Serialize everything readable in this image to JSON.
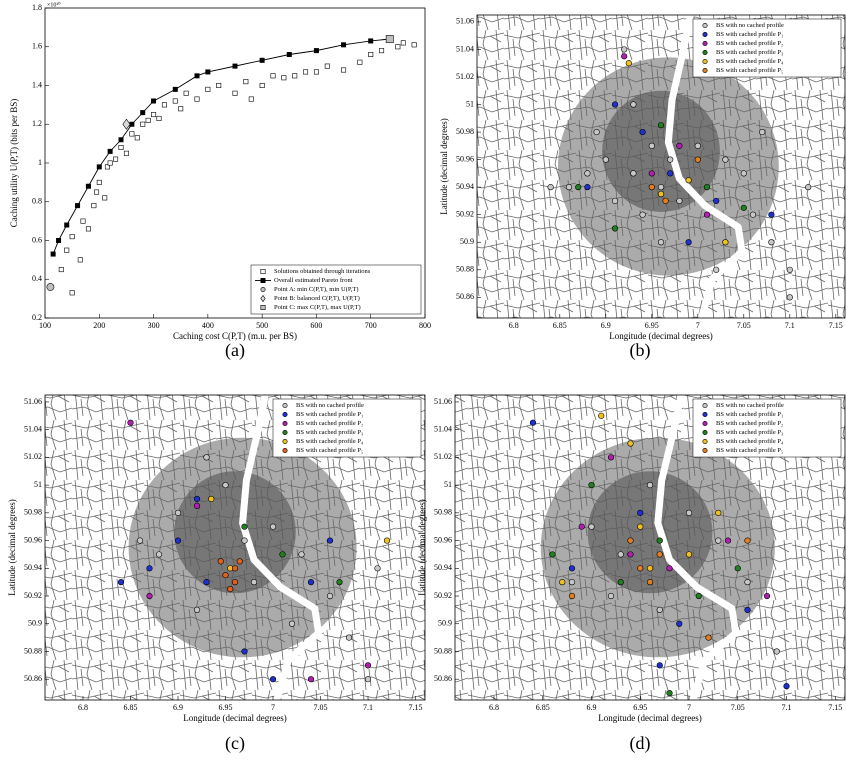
{
  "chart_data": [
    {
      "type": "scatter",
      "caption": "(a)",
      "xlabel": "Caching cost C(P,T) (m.u. per BS)",
      "ylabel": "Caching utility U(P,T) (bits per BS)",
      "y_exponent": "×10¹⁰",
      "xlim": [
        100,
        800
      ],
      "xticks": [
        100,
        200,
        300,
        400,
        500,
        600,
        700,
        800
      ],
      "ylim": [
        0.2,
        1.8
      ],
      "yticks": [
        0.2,
        0.4,
        0.6,
        0.8,
        1,
        1.2,
        1.4,
        1.6,
        1.8
      ],
      "legend": "lower right",
      "series": [
        {
          "name": "Solutions obtained through iterations",
          "color": "#ffffff",
          "marker": "square",
          "x": [
            130,
            140,
            150,
            150,
            165,
            170,
            180,
            190,
            195,
            200,
            210,
            215,
            220,
            230,
            240,
            250,
            260,
            270,
            280,
            290,
            300,
            310,
            320,
            340,
            350,
            360,
            380,
            400,
            420,
            450,
            470,
            480,
            500,
            520,
            540,
            560,
            580,
            600,
            620,
            650,
            680,
            700,
            720,
            750,
            760,
            780
          ],
          "values": [
            0.45,
            0.55,
            0.33,
            0.62,
            0.5,
            0.7,
            0.66,
            0.78,
            0.85,
            0.9,
            0.82,
            0.98,
            1.0,
            1.02,
            1.08,
            1.05,
            1.15,
            1.13,
            1.2,
            1.22,
            1.25,
            1.23,
            1.3,
            1.32,
            1.28,
            1.36,
            1.33,
            1.38,
            1.4,
            1.36,
            1.42,
            1.33,
            1.4,
            1.45,
            1.44,
            1.45,
            1.47,
            1.47,
            1.5,
            1.48,
            1.52,
            1.56,
            1.58,
            1.6,
            1.62,
            1.61
          ]
        },
        {
          "name": "Overall estimated Pareto front",
          "color": "#000000",
          "marker": "square",
          "line": true,
          "x": [
            115,
            125,
            140,
            160,
            180,
            200,
            220,
            240,
            260,
            280,
            300,
            340,
            380,
            400,
            450,
            500,
            550,
            600,
            650,
            700,
            735
          ],
          "values": [
            0.53,
            0.6,
            0.68,
            0.78,
            0.88,
            0.98,
            1.06,
            1.12,
            1.2,
            1.26,
            1.32,
            1.38,
            1.45,
            1.47,
            1.5,
            1.53,
            1.56,
            1.58,
            1.61,
            1.63,
            1.64
          ]
        },
        {
          "name": "Point A: min C(P,T), min U(P,T)",
          "color": "#bfbfbf",
          "marker": "circle",
          "x": [
            110
          ],
          "values": [
            0.36
          ]
        },
        {
          "name": "Point B: balanced C(P,T), U(P,T)",
          "color": "#d9d9d9",
          "marker": "diamond",
          "x": [
            250
          ],
          "values": [
            1.2
          ]
        },
        {
          "name": "Point C: max C(P,T), max U(P,T)",
          "color": "#bfbfbf",
          "marker": "square",
          "x": [
            735
          ],
          "values": [
            1.64
          ]
        }
      ]
    },
    {
      "type": "map",
      "caption": "(b)",
      "xlabel": "Longitude (decimal degrees)",
      "ylabel": "Latitude (decimal degrees)",
      "xlim": [
        6.76,
        7.16
      ],
      "xticks": [
        6.8,
        6.85,
        6.9,
        6.95,
        7,
        7.05,
        7.1,
        7.15
      ],
      "ylim": [
        50.845,
        51.065
      ],
      "yticks": [
        50.86,
        50.88,
        50.9,
        50.92,
        50.94,
        50.96,
        50.98,
        51,
        51.02,
        51.04,
        51.06
      ],
      "legend": "upper right",
      "series": [
        {
          "name": "BS with no cached profile",
          "color": "#c8c8c8",
          "x": [
            6.92,
            6.93,
            6.89,
            6.9,
            6.88,
            6.86,
            6.91,
            6.94,
            6.95,
            6.97,
            7.0,
            7.03,
            7.05,
            7.06,
            7.08,
            7.1,
            7.1,
            7.02,
            6.96,
            6.98,
            6.93,
            6.96,
            7.07,
            6.84,
            7.12
          ],
          "values": [
            51.04,
            51.0,
            50.98,
            50.96,
            50.95,
            50.94,
            50.93,
            50.92,
            50.97,
            50.96,
            50.97,
            50.96,
            50.95,
            50.92,
            50.9,
            50.88,
            50.86,
            50.88,
            50.9,
            50.93,
            50.95,
            50.94,
            50.98,
            50.94,
            50.94
          ]
        },
        {
          "name": "BS with cached profile P₁",
          "color": "#2030d0",
          "x": [
            6.91,
            6.94,
            6.97,
            6.88,
            7.02,
            7.08,
            6.99
          ],
          "values": [
            51.0,
            50.98,
            50.95,
            50.94,
            50.93,
            50.92,
            50.9
          ]
        },
        {
          "name": "BS with cached profile P₂",
          "color": "#b020b0",
          "x": [
            6.92,
            6.95,
            6.98,
            7.01
          ],
          "values": [
            51.035,
            50.95,
            50.97,
            50.92
          ]
        },
        {
          "name": "BS with cached profile P₃",
          "color": "#208020",
          "x": [
            6.96,
            6.87,
            6.91,
            7.01,
            7.05
          ],
          "values": [
            50.985,
            50.94,
            50.91,
            50.94,
            50.925
          ]
        },
        {
          "name": "BS with cached profile P₄",
          "color": "#f0c020",
          "x": [
            6.925,
            6.96,
            6.99,
            7.03
          ],
          "values": [
            51.03,
            50.935,
            50.945,
            50.9
          ]
        },
        {
          "name": "BS with cached profile P₅",
          "color": "#e08020",
          "x": [
            6.95,
            6.965,
            7.0
          ],
          "values": [
            50.94,
            50.93,
            50.96
          ]
        }
      ]
    },
    {
      "type": "map",
      "caption": "(c)",
      "xlabel": "Longitude (decimal degrees)",
      "ylabel": "Latitude (decimal degrees)",
      "xlim": [
        6.76,
        7.16
      ],
      "xticks": [
        6.8,
        6.85,
        6.9,
        6.95,
        7,
        7.05,
        7.1,
        7.15
      ],
      "ylim": [
        50.845,
        51.065
      ],
      "yticks": [
        50.86,
        50.88,
        50.9,
        50.92,
        50.94,
        50.96,
        50.98,
        51,
        51.02,
        51.04,
        51.06
      ],
      "legend": "upper right",
      "series": [
        {
          "name": "BS with no cached profile",
          "color": "#c8c8c8",
          "x": [
            6.9,
            6.93,
            6.97,
            7.0,
            7.03,
            7.06,
            7.08,
            6.88,
            6.95,
            7.1,
            6.92,
            6.86,
            7.02,
            7.11,
            6.98
          ],
          "values": [
            50.98,
            51.02,
            50.96,
            50.97,
            50.95,
            50.92,
            50.89,
            50.95,
            51.0,
            50.86,
            50.91,
            50.96,
            50.9,
            50.94,
            50.93
          ]
        },
        {
          "name": "BS with cached profile P₁",
          "color": "#2030d0",
          "x": [
            6.87,
            6.84,
            6.9,
            6.93,
            6.97,
            7.0,
            6.92,
            7.04,
            7.06
          ],
          "values": [
            50.94,
            50.93,
            50.96,
            50.93,
            50.88,
            50.86,
            50.99,
            50.93,
            50.96
          ]
        },
        {
          "name": "BS with cached profile P₂",
          "color": "#b020b0",
          "x": [
            6.85,
            6.92,
            6.87,
            7.04,
            7.1
          ],
          "values": [
            51.045,
            50.985,
            50.92,
            50.86,
            50.87
          ]
        },
        {
          "name": "BS with cached profile P₃",
          "color": "#208020",
          "x": [
            6.97,
            7.01,
            7.07
          ],
          "values": [
            50.97,
            50.95,
            50.93
          ]
        },
        {
          "name": "BS with cached profile P₄",
          "color": "#f0c020",
          "x": [
            6.935,
            6.955,
            7.12
          ],
          "values": [
            50.99,
            50.94,
            50.96
          ]
        },
        {
          "name": "BS with cached profile P₅",
          "color": "#e06020",
          "x": [
            6.95,
            6.96,
            6.955,
            6.965,
            6.945,
            6.96
          ],
          "values": [
            50.935,
            50.94,
            50.925,
            50.945,
            50.945,
            50.93
          ]
        }
      ]
    },
    {
      "type": "map",
      "caption": "(d)",
      "xlabel": "Longitude (decimal degrees)",
      "ylabel": "Latitude (decimal degrees)",
      "xlim": [
        6.76,
        7.16
      ],
      "xticks": [
        6.8,
        6.85,
        6.9,
        6.95,
        7,
        7.05,
        7.1,
        7.15
      ],
      "ylim": [
        50.845,
        51.065
      ],
      "yticks": [
        50.86,
        50.88,
        50.9,
        50.92,
        50.94,
        50.96,
        50.98,
        51,
        51.02,
        51.04,
        51.06
      ],
      "legend": "upper right",
      "series": [
        {
          "name": "BS with no cached profile",
          "color": "#c8c8c8",
          "x": [
            6.9,
            6.93,
            6.96,
            7.0,
            7.03,
            7.06,
            6.88,
            6.97,
            7.09,
            6.92
          ],
          "values": [
            50.97,
            50.95,
            51.0,
            50.98,
            50.96,
            50.93,
            50.93,
            50.91,
            50.88,
            50.92
          ]
        },
        {
          "name": "BS with cached profile P₁",
          "color": "#2030d0",
          "x": [
            6.84,
            6.88,
            6.95,
            6.99,
            7.06,
            7.1,
            6.97
          ],
          "values": [
            51.045,
            50.94,
            50.98,
            50.9,
            50.91,
            50.855,
            50.87
          ]
        },
        {
          "name": "BS with cached profile P₂",
          "color": "#b020b0",
          "x": [
            6.92,
            6.94,
            6.98,
            7.04,
            6.89,
            7.08
          ],
          "values": [
            51.02,
            50.95,
            50.94,
            50.96,
            50.97,
            50.92
          ]
        },
        {
          "name": "BS with cached profile P₃",
          "color": "#208020",
          "x": [
            6.9,
            6.93,
            6.97,
            7.01,
            7.05,
            6.86,
            6.98
          ],
          "values": [
            51.0,
            50.93,
            50.96,
            50.92,
            50.94,
            50.95,
            50.85
          ]
        },
        {
          "name": "BS with cached profile P₄",
          "color": "#f0c020",
          "x": [
            6.91,
            6.95,
            6.96,
            7.0,
            6.87,
            7.03,
            6.94
          ],
          "values": [
            51.05,
            50.97,
            50.94,
            50.95,
            50.93,
            50.98,
            51.03
          ]
        },
        {
          "name": "BS with cached profile P₅",
          "color": "#e08020",
          "x": [
            6.95,
            6.96,
            6.97,
            6.94,
            7.02,
            7.06,
            6.88
          ],
          "values": [
            50.94,
            50.93,
            50.95,
            50.96,
            50.89,
            50.96,
            50.92
          ]
        }
      ]
    }
  ]
}
